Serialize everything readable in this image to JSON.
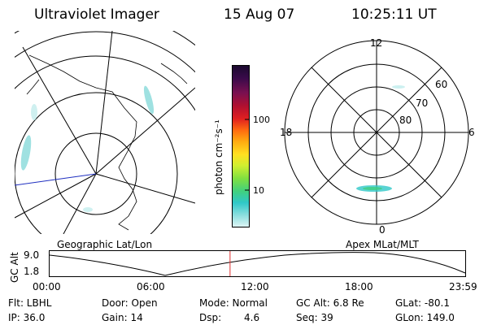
{
  "header": {
    "instrument": "Ultraviolet Imager",
    "date": "15 Aug 07",
    "time": "10:25:11 UT"
  },
  "colorbar": {
    "unit_label": "photon cm⁻²s⁻¹",
    "ticks": [
      "100",
      "10"
    ],
    "colors": [
      "#1a0a2e",
      "#3a0a4a",
      "#7a1050",
      "#b01030",
      "#e02020",
      "#ff6a10",
      "#ffaa10",
      "#ffe020",
      "#d0ef30",
      "#80e040",
      "#40d080",
      "#30c8c8",
      "#90e0e0",
      "#dff4f4"
    ]
  },
  "left_panel": {
    "label": "Geographic Lat/Lon"
  },
  "right_panel": {
    "label": "Apex MLat/MLT",
    "mlt_labels": {
      "top": "12",
      "bottom": "0",
      "left": "18",
      "right": "6"
    },
    "mlat_labels": [
      "60",
      "70",
      "80"
    ]
  },
  "altitude_plot": {
    "ylabel": "GC Alt",
    "yticks": [
      "9.0",
      "1.8"
    ],
    "xticks": [
      "00:00",
      "06:00",
      "12:00",
      "18:00",
      "23:59"
    ],
    "marker_time_hours": 10.42,
    "marker_color": "#e03030"
  },
  "status": {
    "filter": "Flt: LBHL",
    "ip": "IP: 36.0",
    "door": "Door: Open",
    "gain": "Gain: 14",
    "mode": "Mode: Normal",
    "dsp_label": "Dsp:",
    "dsp_value": "4.6",
    "gc_alt": "GC Alt: 6.8 Re",
    "seq": "Seq: 39",
    "glat": "GLat: -80.1",
    "glon": "GLon: 149.0"
  }
}
